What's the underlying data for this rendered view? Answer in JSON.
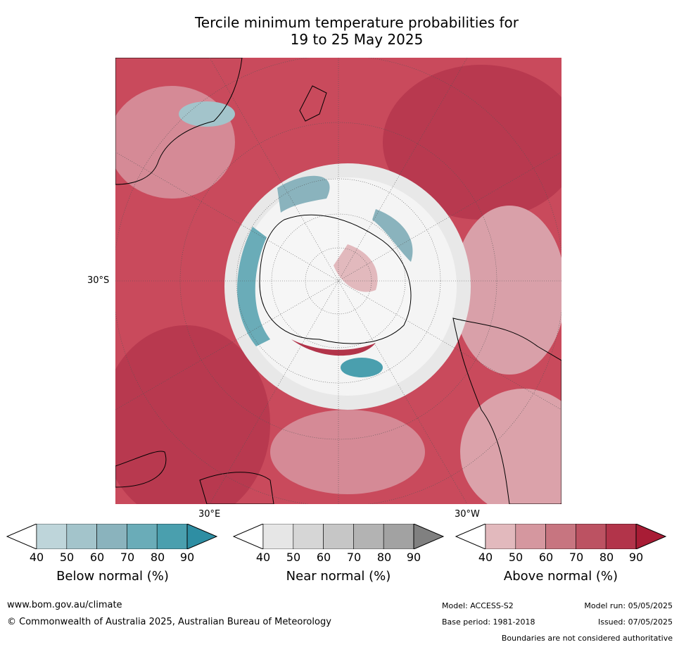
{
  "title": {
    "line1": "Tercile minimum temperature probabilities for",
    "line2": "19 to 25 May 2025"
  },
  "map": {
    "projection_center": "South Pole",
    "lat_label": "30°S",
    "lon_labels": [
      "30°E",
      "30°W"
    ],
    "palette": {
      "above": [
        "#e2b9bd",
        "#d5979f",
        "#c77580",
        "#bc5262",
        "#b2344a",
        "#a81c35"
      ],
      "below": [
        "#bed5da",
        "#a3c4cb",
        "#8ab3bd",
        "#6aacb8",
        "#4a9fae",
        "#2e8ea3"
      ],
      "near": [
        "#e6e6e6",
        "#d6d6d6",
        "#c6c6c6",
        "#b3b3b3",
        "#a2a2a2",
        "#808080"
      ]
    }
  },
  "colorbars": [
    {
      "label": "Below normal (%)",
      "ticks": [
        "40",
        "50",
        "60",
        "70",
        "80",
        "90"
      ],
      "colors": [
        "#bed5da",
        "#a3c4cb",
        "#8ab3bd",
        "#6aacb8",
        "#4a9fae"
      ],
      "extend": "#2e8ea3"
    },
    {
      "label": "Near normal (%)",
      "ticks": [
        "40",
        "50",
        "60",
        "70",
        "80",
        "90"
      ],
      "colors": [
        "#e6e6e6",
        "#d6d6d6",
        "#c6c6c6",
        "#b3b3b3",
        "#a2a2a2"
      ],
      "extend": "#808080"
    },
    {
      "label": "Above normal (%)",
      "ticks": [
        "40",
        "50",
        "60",
        "70",
        "80",
        "90"
      ],
      "colors": [
        "#e2b9bd",
        "#d5979f",
        "#c77580",
        "#bc5262",
        "#b2344a"
      ],
      "extend": "#a81c35"
    }
  ],
  "footer": {
    "website": "www.bom.gov.au/climate",
    "copyright": "© Commonwealth of Australia 2025, Australian Bureau of Meteorology",
    "model": "Model: ACCESS-S2",
    "base_period": "Base period: 1981-2018",
    "model_run": "Model run: 05/05/2025",
    "issued": "Issued: 07/05/2025",
    "disclaimer": "Boundaries are not considered authoritative"
  }
}
